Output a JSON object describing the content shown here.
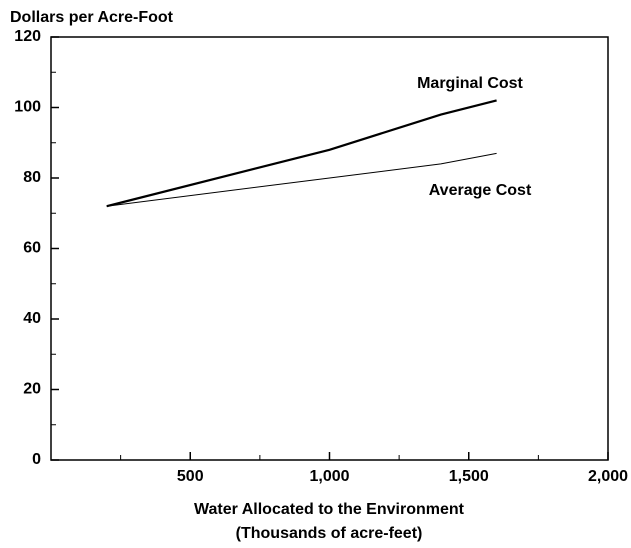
{
  "chart_data": {
    "type": "line",
    "y_label": "Dollars per Acre-Foot",
    "x_label": [
      "Water Allocated to the Environment",
      "(Thousands of acre-feet)"
    ],
    "x": [
      200,
      1000,
      1400,
      1600
    ],
    "series": [
      {
        "name": "Marginal Cost",
        "color": "#000000",
        "values": [
          72,
          88,
          98,
          102
        ]
      },
      {
        "name": "Average Cost",
        "color": "#000000",
        "values": [
          72,
          80,
          84,
          87
        ]
      }
    ],
    "xlim": [
      0,
      2000
    ],
    "xticks": [
      500,
      {
        "value": 1000,
        "label": "1,000"
      },
      {
        "value": 1500,
        "label": "1,500"
      },
      {
        "value": 2000,
        "label": "2,000"
      }
    ],
    "xminor_ticks": [
      250,
      750,
      1250,
      1750
    ],
    "ylim": [
      0,
      120
    ],
    "yticks": [
      0,
      20,
      40,
      60,
      80,
      100,
      120
    ],
    "yminor_ticks": [
      10,
      30,
      50,
      70,
      90,
      110
    ],
    "grid": false
  }
}
